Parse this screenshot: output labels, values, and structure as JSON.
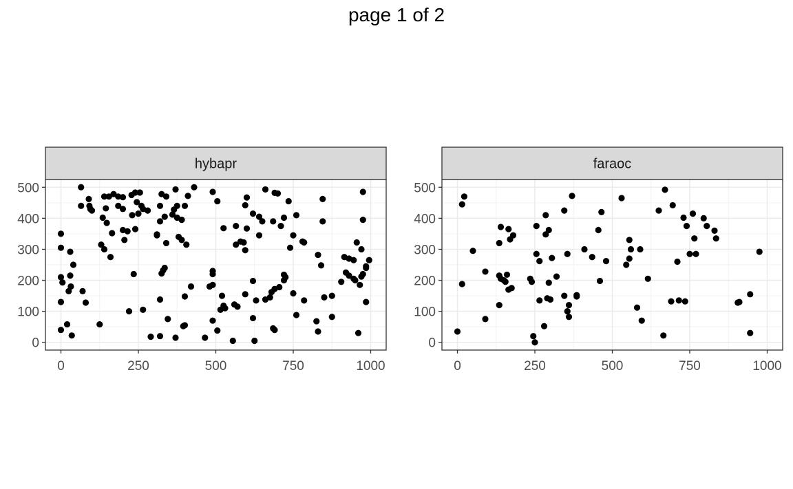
{
  "page": {
    "title": "page 1 of 2"
  },
  "chart_data": [
    {
      "type": "scatter",
      "panel_label": "hybapr",
      "xlabel": "",
      "ylabel": "",
      "xlim": [
        -50,
        1050
      ],
      "ylim": [
        -25,
        525
      ],
      "x_ticks": [
        0,
        250,
        500,
        750,
        1000
      ],
      "y_ticks": [
        0,
        100,
        200,
        300,
        400,
        500
      ],
      "grid": true,
      "point_color": "#000000",
      "points": [
        [
          65,
          500
        ],
        [
          140,
          470
        ],
        [
          155,
          470
        ],
        [
          170,
          478
        ],
        [
          185,
          470
        ],
        [
          200,
          468
        ],
        [
          228,
          475
        ],
        [
          240,
          483
        ],
        [
          255,
          483
        ],
        [
          280,
          425
        ],
        [
          325,
          478
        ],
        [
          340,
          470
        ],
        [
          370,
          493
        ],
        [
          410,
          472
        ],
        [
          430,
          500
        ],
        [
          490,
          485
        ],
        [
          660,
          493
        ],
        [
          690,
          482
        ],
        [
          700,
          480
        ],
        [
          845,
          462
        ],
        [
          975,
          485
        ],
        [
          65,
          440
        ],
        [
          90,
          462
        ],
        [
          92,
          440
        ],
        [
          95,
          430
        ],
        [
          100,
          425
        ],
        [
          145,
          432
        ],
        [
          185,
          440
        ],
        [
          200,
          430
        ],
        [
          245,
          452
        ],
        [
          260,
          440
        ],
        [
          265,
          430
        ],
        [
          320,
          440
        ],
        [
          375,
          440
        ],
        [
          365,
          428
        ],
        [
          400,
          440
        ],
        [
          505,
          455
        ],
        [
          595,
          442
        ],
        [
          600,
          467
        ],
        [
          735,
          455
        ],
        [
          845,
          390
        ],
        [
          135,
          402
        ],
        [
          148,
          385
        ],
        [
          165,
          352
        ],
        [
          200,
          362
        ],
        [
          215,
          358
        ],
        [
          230,
          410
        ],
        [
          240,
          365
        ],
        [
          250,
          415
        ],
        [
          310,
          348
        ],
        [
          320,
          390
        ],
        [
          335,
          405
        ],
        [
          360,
          412
        ],
        [
          375,
          402
        ],
        [
          390,
          395
        ],
        [
          380,
          340
        ],
        [
          390,
          330
        ],
        [
          405,
          315
        ],
        [
          565,
          375
        ],
        [
          600,
          367
        ],
        [
          620,
          415
        ],
        [
          640,
          405
        ],
        [
          650,
          390
        ],
        [
          685,
          390
        ],
        [
          760,
          410
        ],
        [
          780,
          325
        ],
        [
          975,
          395
        ],
        [
          0,
          350
        ],
        [
          0,
          305
        ],
        [
          30,
          292
        ],
        [
          130,
          315
        ],
        [
          140,
          300
        ],
        [
          160,
          275
        ],
        [
          205,
          330
        ],
        [
          310,
          345
        ],
        [
          340,
          320
        ],
        [
          525,
          368
        ],
        [
          565,
          315
        ],
        [
          580,
          325
        ],
        [
          590,
          322
        ],
        [
          595,
          297
        ],
        [
          640,
          345
        ],
        [
          710,
          375
        ],
        [
          720,
          402
        ],
        [
          740,
          305
        ],
        [
          750,
          345
        ],
        [
          785,
          322
        ],
        [
          830,
          282
        ],
        [
          840,
          248
        ],
        [
          905,
          195
        ],
        [
          915,
          275
        ],
        [
          930,
          270
        ],
        [
          945,
          265
        ],
        [
          955,
          322
        ],
        [
          970,
          300
        ],
        [
          985,
          245
        ],
        [
          995,
          265
        ],
        [
          0,
          210
        ],
        [
          5,
          193
        ],
        [
          25,
          165
        ],
        [
          30,
          215
        ],
        [
          32,
          180
        ],
        [
          40,
          250
        ],
        [
          70,
          165
        ],
        [
          80,
          128
        ],
        [
          235,
          220
        ],
        [
          325,
          222
        ],
        [
          330,
          232
        ],
        [
          335,
          240
        ],
        [
          400,
          148
        ],
        [
          420,
          180
        ],
        [
          480,
          180
        ],
        [
          490,
          230
        ],
        [
          490,
          220
        ],
        [
          490,
          185
        ],
        [
          515,
          105
        ],
        [
          520,
          150
        ],
        [
          525,
          118
        ],
        [
          530,
          110
        ],
        [
          560,
          122
        ],
        [
          570,
          115
        ],
        [
          595,
          155
        ],
        [
          620,
          198
        ],
        [
          630,
          135
        ],
        [
          660,
          138
        ],
        [
          675,
          145
        ],
        [
          680,
          162
        ],
        [
          690,
          172
        ],
        [
          705,
          178
        ],
        [
          720,
          200
        ],
        [
          720,
          218
        ],
        [
          725,
          210
        ],
        [
          750,
          158
        ],
        [
          760,
          88
        ],
        [
          785,
          135
        ],
        [
          850,
          145
        ],
        [
          875,
          150
        ],
        [
          920,
          225
        ],
        [
          930,
          215
        ],
        [
          945,
          205
        ],
        [
          950,
          200
        ],
        [
          965,
          185
        ],
        [
          970,
          212
        ],
        [
          975,
          220
        ],
        [
          985,
          240
        ],
        [
          985,
          130
        ],
        [
          0,
          130
        ],
        [
          0,
          40
        ],
        [
          20,
          58
        ],
        [
          35,
          22
        ],
        [
          125,
          58
        ],
        [
          220,
          100
        ],
        [
          265,
          105
        ],
        [
          290,
          18
        ],
        [
          320,
          20
        ],
        [
          320,
          138
        ],
        [
          345,
          75
        ],
        [
          370,
          15
        ],
        [
          395,
          52
        ],
        [
          400,
          55
        ],
        [
          465,
          15
        ],
        [
          490,
          70
        ],
        [
          505,
          38
        ],
        [
          555,
          5
        ],
        [
          620,
          78
        ],
        [
          625,
          5
        ],
        [
          685,
          45
        ],
        [
          690,
          40
        ],
        [
          825,
          68
        ],
        [
          830,
          35
        ],
        [
          875,
          82
        ],
        [
          960,
          30
        ]
      ]
    },
    {
      "type": "scatter",
      "panel_label": "faraoc",
      "xlabel": "",
      "ylabel": "",
      "xlim": [
        -50,
        1050
      ],
      "ylim": [
        -25,
        525
      ],
      "x_ticks": [
        0,
        250,
        500,
        750,
        1000
      ],
      "y_ticks": [
        0,
        100,
        200,
        300,
        400,
        500
      ],
      "grid": true,
      "point_color": "#000000",
      "points": [
        [
          15,
          445
        ],
        [
          22,
          470
        ],
        [
          670,
          492
        ],
        [
          370,
          472
        ],
        [
          530,
          465
        ],
        [
          345,
          425
        ],
        [
          465,
          420
        ],
        [
          650,
          425
        ],
        [
          695,
          442
        ],
        [
          760,
          415
        ],
        [
          795,
          400
        ],
        [
          285,
          410
        ],
        [
          255,
          375
        ],
        [
          140,
          372
        ],
        [
          165,
          365
        ],
        [
          455,
          362
        ],
        [
          295,
          362
        ],
        [
          170,
          332
        ],
        [
          180,
          345
        ],
        [
          135,
          320
        ],
        [
          285,
          348
        ],
        [
          555,
          330
        ],
        [
          730,
          402
        ],
        [
          740,
          375
        ],
        [
          805,
          375
        ],
        [
          830,
          360
        ],
        [
          835,
          335
        ],
        [
          765,
          335
        ],
        [
          560,
          300
        ],
        [
          590,
          300
        ],
        [
          50,
          295
        ],
        [
          975,
          292
        ],
        [
          255,
          285
        ],
        [
          355,
          285
        ],
        [
          410,
          300
        ],
        [
          435,
          275
        ],
        [
          265,
          262
        ],
        [
          305,
          272
        ],
        [
          480,
          262
        ],
        [
          545,
          250
        ],
        [
          555,
          270
        ],
        [
          710,
          260
        ],
        [
          750,
          285
        ],
        [
          770,
          285
        ],
        [
          15,
          188
        ],
        [
          90,
          228
        ],
        [
          135,
          215
        ],
        [
          140,
          205
        ],
        [
          150,
          200
        ],
        [
          160,
          218
        ],
        [
          155,
          195
        ],
        [
          165,
          170
        ],
        [
          175,
          175
        ],
        [
          235,
          205
        ],
        [
          240,
          195
        ],
        [
          295,
          192
        ],
        [
          320,
          212
        ],
        [
          385,
          148
        ],
        [
          385,
          152
        ],
        [
          460,
          198
        ],
        [
          615,
          205
        ],
        [
          135,
          120
        ],
        [
          265,
          135
        ],
        [
          290,
          142
        ],
        [
          300,
          138
        ],
        [
          345,
          150
        ],
        [
          360,
          120
        ],
        [
          355,
          100
        ],
        [
          360,
          82
        ],
        [
          580,
          112
        ],
        [
          595,
          70
        ],
        [
          690,
          132
        ],
        [
          715,
          135
        ],
        [
          735,
          132
        ],
        [
          905,
          128
        ],
        [
          910,
          130
        ],
        [
          945,
          155
        ],
        [
          0,
          35
        ],
        [
          90,
          75
        ],
        [
          245,
          20
        ],
        [
          250,
          0
        ],
        [
          280,
          52
        ],
        [
          665,
          22
        ],
        [
          945,
          30
        ]
      ]
    }
  ]
}
